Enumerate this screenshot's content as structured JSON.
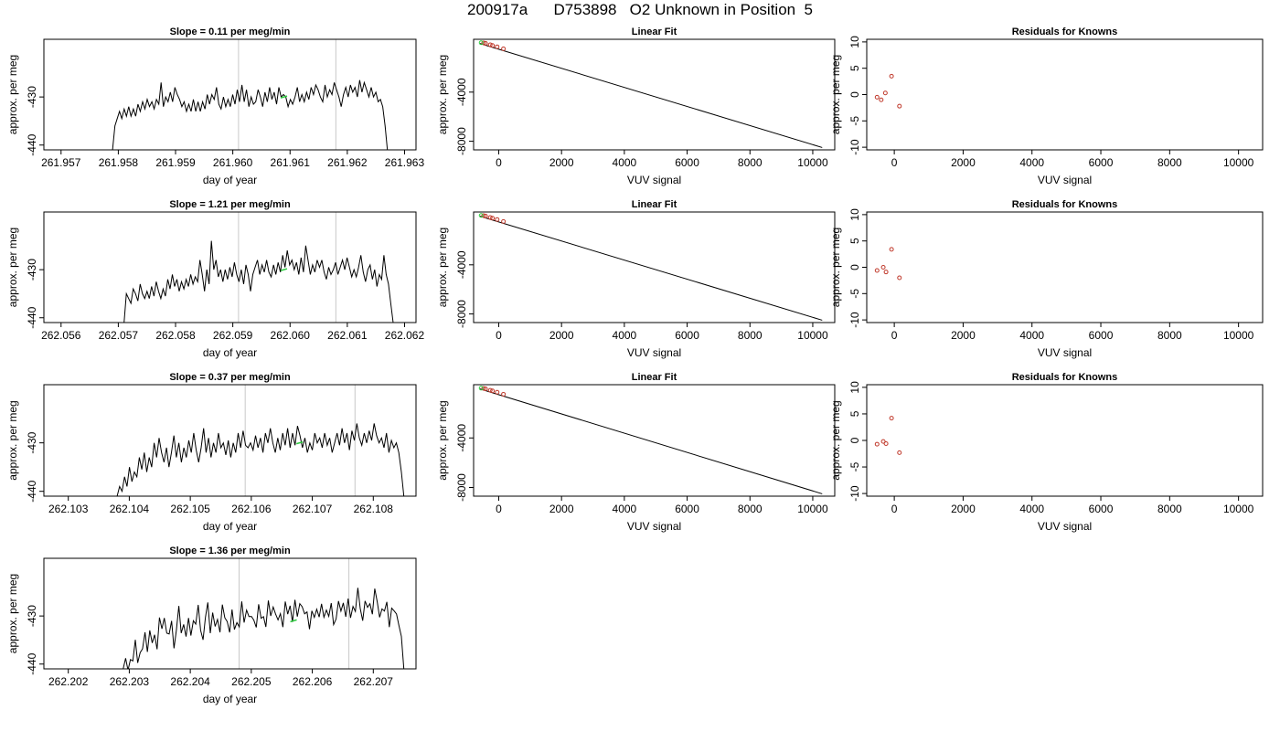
{
  "header": {
    "title": "200917a      D753898   O2 Unknown in Position  5"
  },
  "colors": {
    "trace": "#000000",
    "known_points": "#c0392b",
    "unknown_point": "#2ecc40",
    "marker_line": "#c8c8c8",
    "fit_line": "#000000"
  },
  "chart_data": [
    {
      "type": "line",
      "panel": "trace",
      "row": 0,
      "title": "Slope =  0.11  per meg/min",
      "xlabel": "day of year",
      "ylabel": "approx. per meg",
      "xlim": [
        261.9567,
        261.9632
      ],
      "ylim": [
        -441,
        -418
      ],
      "xticks": [
        "261.957",
        "261.958",
        "261.959",
        "261.960",
        "261.961",
        "261.962",
        "261.963"
      ],
      "yticks": [
        "-440",
        "-430"
      ],
      "x_start": 261.9579,
      "x_end": 261.9627,
      "markers_x": [
        261.9601,
        261.9618
      ],
      "unknown_point": [
        261.9609,
        -430
      ],
      "y": [
        -441,
        -436,
        -434.5,
        -433,
        -434.5,
        -432.5,
        -434,
        -432,
        -434,
        -432.5,
        -434,
        -431.5,
        -433,
        -431,
        -432.5,
        -430.5,
        -432,
        -431,
        -432.5,
        -430.5,
        -431.5,
        -427,
        -432,
        -430,
        -431,
        -429,
        -431,
        -428,
        -429.5,
        -430.5,
        -432,
        -431,
        -433,
        -431.5,
        -433,
        -430.5,
        -433,
        -431,
        -433,
        -431,
        -432.5,
        -429.5,
        -431.5,
        -429.5,
        -430.5,
        -428,
        -431.5,
        -432.5,
        -430,
        -432,
        -430.5,
        -432,
        -429.5,
        -431.5,
        -428.5,
        -431,
        -427.5,
        -431,
        -428.5,
        -432,
        -430,
        -431.5,
        -431,
        -428.5,
        -430,
        -432,
        -429,
        -431,
        -428,
        -430.5,
        -429,
        -431.5,
        -428,
        -430,
        -429.5,
        -430,
        -432,
        -430.5,
        -431.5,
        -430,
        -428,
        -431,
        -429.5,
        -431,
        -429,
        -430.5,
        -428,
        -429.5,
        -427.5,
        -428.5,
        -430,
        -431,
        -427.5,
        -430,
        -428.5,
        -429.5,
        -427,
        -428.5,
        -430,
        -432,
        -429.5,
        -428,
        -430,
        -427.5,
        -429,
        -428,
        -430,
        -426.5,
        -429,
        -427,
        -428.5,
        -430,
        -428,
        -430,
        -429,
        -431,
        -430.5,
        -432,
        -436,
        -441
      ]
    },
    {
      "type": "scatter",
      "panel": "fit",
      "row": 0,
      "title": "Linear Fit",
      "xlabel": "VUV signal",
      "ylabel": "approx. per meg",
      "xlim": [
        -800,
        10700
      ],
      "ylim": [
        -8700,
        300
      ],
      "xticks": [
        "0",
        "2000",
        "4000",
        "6000",
        "8000",
        "10000"
      ],
      "yticks": [
        "-8000",
        "-4000"
      ],
      "fit_line": [
        [
          -600,
          -42
        ],
        [
          10300,
          -8510
        ]
      ],
      "known_points": [
        [
          -480,
          0
        ],
        [
          -420,
          -30
        ],
        [
          -270,
          -150
        ],
        [
          -200,
          -200
        ],
        [
          -50,
          -310
        ],
        [
          150,
          -470
        ]
      ],
      "unknown_point": [
        -560,
        20
      ]
    },
    {
      "type": "scatter",
      "panel": "residuals",
      "row": 0,
      "title": "Residuals for Knowns",
      "xlabel": "VUV signal",
      "ylabel": "approx. per meg",
      "xlim": [
        -800,
        10700
      ],
      "ylim": [
        -10.5,
        10.5
      ],
      "xticks": [
        "0",
        "2000",
        "4000",
        "6000",
        "8000",
        "10000"
      ],
      "yticks": [
        "-10",
        "-5",
        "0",
        "5",
        "10"
      ],
      "points": [
        [
          -500,
          -0.5
        ],
        [
          -380,
          -1
        ],
        [
          -260,
          0.3
        ],
        [
          -80,
          3.5
        ],
        [
          150,
          -2.2
        ]
      ]
    },
    {
      "type": "line",
      "panel": "trace",
      "row": 1,
      "title": "Slope =  1.21  per meg/min",
      "xlabel": "day of year",
      "ylabel": "approx. per meg",
      "xlim": [
        262.0557,
        262.0622
      ],
      "ylim": [
        -441,
        -418
      ],
      "xticks": [
        "262.056",
        "262.057",
        "262.058",
        "262.059",
        "262.060",
        "262.061",
        "262.062"
      ],
      "yticks": [
        "-440",
        "-430"
      ],
      "x_start": 262.0571,
      "x_end": 262.0618,
      "markers_x": [
        262.0591,
        262.0608
      ],
      "unknown_point": [
        262.0599,
        -430
      ],
      "y": [
        -441,
        -435,
        -436,
        -437,
        -434,
        -435,
        -436.5,
        -433,
        -435,
        -436,
        -434.5,
        -436,
        -433.5,
        -435.5,
        -432.5,
        -434.5,
        -436,
        -434,
        -435.5,
        -432,
        -434,
        -431,
        -433.5,
        -432,
        -434.5,
        -432.5,
        -434,
        -432,
        -433.5,
        -431,
        -433,
        -431.5,
        -432.5,
        -428,
        -431,
        -434.5,
        -430,
        -433,
        -424,
        -430,
        -428,
        -431.5,
        -430,
        -432.5,
        -430,
        -432,
        -429.5,
        -431.5,
        -428.5,
        -431,
        -432.5,
        -430,
        -433,
        -429,
        -431,
        -434.5,
        -431,
        -429.5,
        -428,
        -431,
        -429,
        -430.5,
        -428,
        -430.5,
        -431.5,
        -429,
        -431,
        -428.5,
        -430.5,
        -427,
        -429.5,
        -426,
        -429,
        -428,
        -430,
        -428.5,
        -431,
        -427.5,
        -430.5,
        -425,
        -428,
        -431,
        -429,
        -430.5,
        -428,
        -429.5,
        -428,
        -430.5,
        -432,
        -429.5,
        -431,
        -430,
        -428.5,
        -431,
        -429.5,
        -428,
        -430,
        -427.5,
        -429.5,
        -431.5,
        -430,
        -431.5,
        -429.5,
        -427,
        -430.5,
        -432.5,
        -430,
        -429,
        -432,
        -430,
        -433.5,
        -431,
        -432,
        -427,
        -431,
        -433,
        -437,
        -441
      ]
    },
    {
      "type": "scatter",
      "panel": "fit",
      "row": 1,
      "title": "Linear Fit",
      "xlabel": "VUV signal",
      "ylabel": "approx. per meg",
      "xlim": [
        -800,
        10700
      ],
      "ylim": [
        -8700,
        300
      ],
      "xticks": [
        "0",
        "2000",
        "4000",
        "6000",
        "8000",
        "10000"
      ],
      "yticks": [
        "-8000",
        "-4000"
      ],
      "fit_line": [
        [
          -600,
          -42
        ],
        [
          10300,
          -8510
        ]
      ],
      "known_points": [
        [
          -480,
          0
        ],
        [
          -420,
          -30
        ],
        [
          -270,
          -150
        ],
        [
          -200,
          -200
        ],
        [
          -50,
          -310
        ],
        [
          150,
          -470
        ]
      ],
      "unknown_point": [
        -560,
        20
      ]
    },
    {
      "type": "scatter",
      "panel": "residuals",
      "row": 1,
      "title": "Residuals for Knowns",
      "xlabel": "VUV signal",
      "ylabel": "approx. per meg",
      "xlim": [
        -800,
        10700
      ],
      "ylim": [
        -10.5,
        10.5
      ],
      "xticks": [
        "0",
        "2000",
        "4000",
        "6000",
        "8000",
        "10000"
      ],
      "yticks": [
        "-10",
        "-5",
        "0",
        "5",
        "10"
      ],
      "points": [
        [
          -500,
          -0.6
        ],
        [
          -320,
          0
        ],
        [
          -240,
          -0.9
        ],
        [
          -80,
          3.4
        ],
        [
          150,
          -2
        ]
      ]
    },
    {
      "type": "line",
      "panel": "trace",
      "row": 2,
      "title": "Slope =  0.37  per meg/min",
      "xlabel": "day of year",
      "ylabel": "approx. per meg",
      "xlim": [
        262.1026,
        262.1087
      ],
      "ylim": [
        -441,
        -418
      ],
      "xticks": [
        "262.103",
        "262.104",
        "262.105",
        "262.106",
        "262.107",
        "262.108"
      ],
      "yticks": [
        "-440",
        "-430"
      ],
      "x_start": 262.1038,
      "x_end": 262.1085,
      "markers_x": [
        262.1059,
        262.1077
      ],
      "unknown_point": [
        262.1068,
        -430
      ],
      "y": [
        -441,
        -439,
        -440,
        -437,
        -439,
        -435,
        -438,
        -436,
        -437,
        -433,
        -435.5,
        -432,
        -436,
        -433,
        -435,
        -430,
        -433,
        -429,
        -432,
        -434,
        -431,
        -435,
        -432,
        -428.5,
        -433,
        -430,
        -434,
        -431,
        -433,
        -429.5,
        -432,
        -428,
        -431.5,
        -434,
        -431,
        -427,
        -432,
        -429,
        -433,
        -430,
        -432,
        -428,
        -431,
        -430,
        -432.5,
        -429.5,
        -433,
        -430,
        -432,
        -428,
        -431,
        -427.5,
        -430.5,
        -431,
        -430,
        -431.5,
        -428.5,
        -431,
        -429,
        -432,
        -428,
        -430,
        -427,
        -430,
        -432,
        -429,
        -431.5,
        -428,
        -430.5,
        -427,
        -431,
        -428,
        -430.5,
        -426.5,
        -428.5,
        -431,
        -429,
        -432,
        -430,
        -431.5,
        -428,
        -430,
        -429,
        -431,
        -428,
        -430.5,
        -429,
        -432,
        -430,
        -428,
        -430.5,
        -427,
        -430,
        -428,
        -431.5,
        -427.5,
        -429.5,
        -426,
        -429,
        -430.5,
        -428,
        -430,
        -427.5,
        -429.5,
        -426,
        -428.5,
        -430,
        -429,
        -431,
        -428,
        -432,
        -429.5,
        -431,
        -430,
        -432,
        -436,
        -441
      ]
    },
    {
      "type": "scatter",
      "panel": "fit",
      "row": 2,
      "title": "Linear Fit",
      "xlabel": "VUV signal",
      "ylabel": "approx. per meg",
      "xlim": [
        -800,
        10700
      ],
      "ylim": [
        -8700,
        300
      ],
      "xticks": [
        "0",
        "2000",
        "4000",
        "6000",
        "8000",
        "10000"
      ],
      "yticks": [
        "-8000",
        "-4000"
      ],
      "fit_line": [
        [
          -600,
          -42
        ],
        [
          10300,
          -8510
        ]
      ],
      "known_points": [
        [
          -480,
          0
        ],
        [
          -420,
          -30
        ],
        [
          -270,
          -150
        ],
        [
          -200,
          -200
        ],
        [
          -50,
          -310
        ],
        [
          150,
          -470
        ]
      ],
      "unknown_point": [
        -560,
        20
      ]
    },
    {
      "type": "scatter",
      "panel": "residuals",
      "row": 2,
      "title": "Residuals for Knowns",
      "xlabel": "VUV signal",
      "ylabel": "approx. per meg",
      "xlim": [
        -800,
        10700
      ],
      "ylim": [
        -10.5,
        10.5
      ],
      "xticks": [
        "0",
        "2000",
        "4000",
        "6000",
        "8000",
        "10000"
      ],
      "yticks": [
        "-10",
        "-5",
        "0",
        "5",
        "10"
      ],
      "points": [
        [
          -500,
          -0.7
        ],
        [
          -320,
          -0.2
        ],
        [
          -240,
          -0.6
        ],
        [
          -80,
          4.2
        ],
        [
          150,
          -2.3
        ]
      ]
    },
    {
      "type": "line",
      "panel": "trace",
      "row": 3,
      "title": "Slope =  1.36  per meg/min",
      "xlabel": "day of year",
      "ylabel": "approx. per meg",
      "xlim": [
        262.2016,
        262.2077
      ],
      "ylim": [
        -441,
        -418
      ],
      "xticks": [
        "262.202",
        "262.203",
        "262.204",
        "262.205",
        "262.206",
        "262.207"
      ],
      "yticks": [
        "-440",
        "-430"
      ],
      "x_start": 262.2029,
      "x_end": 262.2075,
      "markers_x": [
        262.2048,
        262.2066
      ],
      "unknown_point": [
        262.2057,
        -431
      ]
    }
  ]
}
